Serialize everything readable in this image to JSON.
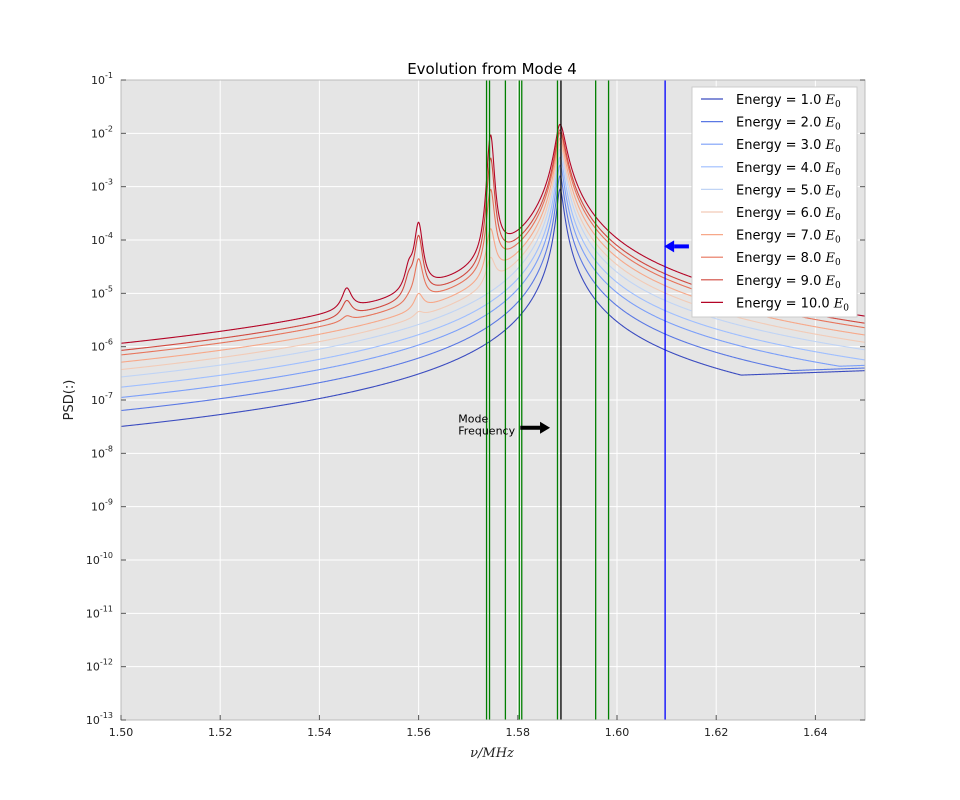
{
  "chart_data": {
    "type": "line",
    "title": "Evolution from Mode 4",
    "xlabel": "ν/MHz",
    "ylabel": "PSD(:)",
    "xlim": [
      1.5,
      1.65
    ],
    "ylim_log10": [
      -13,
      -1
    ],
    "yscale": "log",
    "grid": true,
    "background": "#e5e5e5",
    "legend_position": "top-right",
    "x_ticks": [
      "1.50",
      "1.52",
      "1.54",
      "1.56",
      "1.58",
      "1.60",
      "1.62",
      "1.64"
    ],
    "y_ticks": [
      {
        "base": "10",
        "exp": "-1"
      },
      {
        "base": "10",
        "exp": "-2"
      },
      {
        "base": "10",
        "exp": "-3"
      },
      {
        "base": "10",
        "exp": "-4"
      },
      {
        "base": "10",
        "exp": "-5"
      },
      {
        "base": "10",
        "exp": "-6"
      },
      {
        "base": "10",
        "exp": "-7"
      },
      {
        "base": "10",
        "exp": "-8"
      },
      {
        "base": "10",
        "exp": "-9"
      },
      {
        "base": "10",
        "exp": "-10"
      },
      {
        "base": "10",
        "exp": "-11"
      },
      {
        "base": "10",
        "exp": "-12"
      },
      {
        "base": "10",
        "exp": "-13"
      }
    ],
    "series": [
      {
        "name_prefix": "Energy = 1.0 ",
        "name_sym": "E",
        "name_sub": "0",
        "color": "#3b4cc0",
        "peak_log10": -3.05
      },
      {
        "name_prefix": "Energy = 2.0 ",
        "name_sym": "E",
        "name_sub": "0",
        "color": "#5a78e4",
        "peak_log10": -2.8
      },
      {
        "name_prefix": "Energy = 3.0 ",
        "name_sym": "E",
        "name_sub": "0",
        "color": "#7b9ff9",
        "peak_log10": -2.6
      },
      {
        "name_prefix": "Energy = 4.0 ",
        "name_sym": "E",
        "name_sub": "0",
        "color": "#9ebeff",
        "peak_log10": -2.45
      },
      {
        "name_prefix": "Energy = 5.0 ",
        "name_sym": "E",
        "name_sub": "0",
        "color": "#c0d4f5",
        "peak_log10": -2.3
      },
      {
        "name_prefix": "Energy = 6.0 ",
        "name_sym": "E",
        "name_sub": "0",
        "color": "#f2cbb7",
        "peak_log10": -2.2
      },
      {
        "name_prefix": "Energy = 7.0 ",
        "name_sym": "E",
        "name_sub": "0",
        "color": "#f7a889",
        "peak_log10": -2.1
      },
      {
        "name_prefix": "Energy = 8.0 ",
        "name_sym": "E",
        "name_sub": "0",
        "color": "#e7745b",
        "peak_log10": -2.0
      },
      {
        "name_prefix": "Energy = 9.0 ",
        "name_sym": "E",
        "name_sub": "0",
        "color": "#d1493f",
        "peak_log10": -1.95
      },
      {
        "name_prefix": "Energy = 10.0 ",
        "name_sym": "E",
        "name_sub": "0",
        "color": "#b40426",
        "peak_log10": -1.85
      }
    ],
    "resonance_center": 1.5885,
    "series_bumps": [
      {
        "x": 1.5745,
        "height": [
          0,
          0,
          0,
          0,
          0,
          0.5,
          0.9,
          1.5,
          2.0,
          2.3
        ],
        "width": 0.0011
      },
      {
        "x": 1.56,
        "height": [
          0,
          0,
          0,
          0,
          0,
          0.1,
          0.3,
          0.8,
          1.1,
          1.2
        ],
        "width": 0.0011
      },
      {
        "x": 1.5455,
        "height": [
          0,
          0,
          0,
          0,
          0,
          0,
          0,
          0.1,
          0.3,
          0.4
        ],
        "width": 0.0012
      },
      {
        "x": 1.558,
        "height": [
          0,
          0,
          0,
          0,
          0,
          0,
          0,
          0.05,
          0.3,
          0.35
        ],
        "width": 0.001
      }
    ],
    "vertical_lines": [
      {
        "x": 1.5737,
        "color": "#007f00"
      },
      {
        "x": 1.5743,
        "color": "#007f00"
      },
      {
        "x": 1.5775,
        "color": "#007f00"
      },
      {
        "x": 1.5803,
        "color": "#007f00"
      },
      {
        "x": 1.5808,
        "color": "#007f00"
      },
      {
        "x": 1.588,
        "color": "#007f00"
      },
      {
        "x": 1.5887,
        "color": "#000000"
      },
      {
        "x": 1.5957,
        "color": "#007f00"
      },
      {
        "x": 1.5983,
        "color": "#007f00"
      },
      {
        "x": 1.6097,
        "color": "#0000ff"
      }
    ],
    "annotations": [
      {
        "text_line1": "Mode",
        "text_line2": "Frequency",
        "text_x": 1.568,
        "text_y_log10": -7.5,
        "arrow_from_x": 1.5805,
        "arrow_to_x": 1.5865,
        "arrow_y_log10": -7.52,
        "color": "#000000"
      },
      {
        "arrow_from_x": 1.6145,
        "arrow_to_x": 1.6095,
        "arrow_y_log10": -4.12,
        "color": "#0000ff"
      }
    ]
  }
}
